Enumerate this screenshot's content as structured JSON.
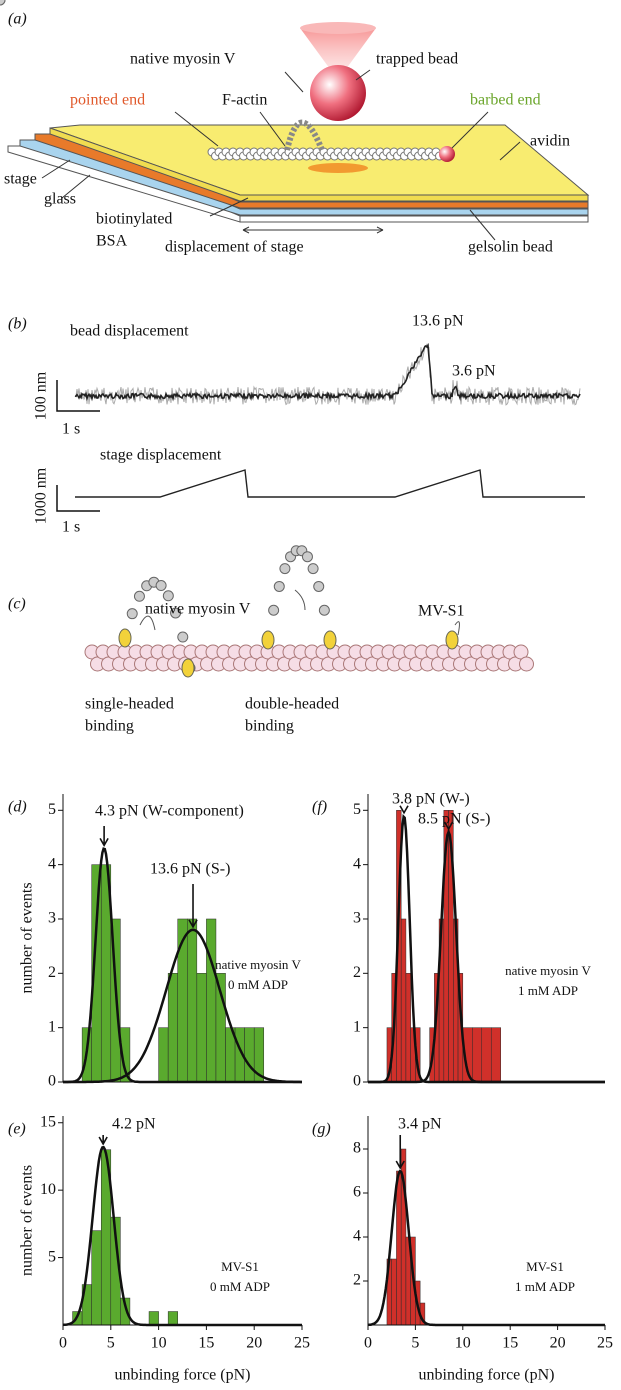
{
  "panel_a": {
    "label": "(a)",
    "native_myosin": "native myosin V",
    "trapped_bead": "trapped bead",
    "pointed_end": "pointed end",
    "f_actin": "F-actin",
    "barbed_end": "barbed end",
    "avidin": "avidin",
    "stage": "stage",
    "glass": "glass",
    "bsa_1": "biotinylated",
    "bsa_2": "BSA",
    "displacement": "displacement of stage",
    "gelsolin": "gelsolin bead"
  },
  "panel_b": {
    "label": "(b)",
    "bead_title": "bead displacement",
    "force_1": "13.6 pN",
    "force_2": "3.6 pN",
    "bead_scale_y": "100 nm",
    "bead_scale_x": "1 s",
    "stage_title": "stage displacement",
    "stage_scale_y": "1000 nm",
    "stage_scale_x": "1 s"
  },
  "panel_c": {
    "label": "(c)",
    "native_myosin": "native myosin V",
    "mv_s1": "MV-S1",
    "single_1": "single-headed",
    "single_2": "binding",
    "double_1": "double-headed",
    "double_2": "binding"
  },
  "chart_data": [
    {
      "type": "histogram",
      "panel_label": "(d)",
      "ylabel": "number of events",
      "color": "#5aaa2e",
      "bins": [
        2,
        3,
        4,
        5,
        6,
        7,
        8,
        9,
        10,
        11,
        12,
        13,
        14,
        15,
        16,
        17,
        18,
        19,
        20,
        21
      ],
      "values": [
        1,
        4,
        4,
        3,
        1,
        0,
        0,
        0,
        1,
        2,
        3,
        3,
        2,
        3,
        2,
        1,
        1,
        1,
        1
      ],
      "xlim": [
        0,
        25
      ],
      "ylim": [
        0,
        5.3
      ],
      "yticks": [
        0,
        1,
        2,
        3,
        4,
        5
      ],
      "fits": [
        {
          "mean": 4.3,
          "sd": 0.9,
          "peak": 4.3
        },
        {
          "mean": 13.6,
          "sd": 2.8,
          "peak": 2.8
        }
      ],
      "annotations": [
        "4.3 pN (W-component)",
        "13.6 pN (S-)",
        "native myosin V",
        "0 mM ADP"
      ]
    },
    {
      "type": "histogram",
      "panel_label": "(f)",
      "color": "#d0302a",
      "bins": [
        2,
        2.5,
        3,
        3.5,
        4,
        4.5,
        5,
        5.5,
        6,
        6.5,
        7,
        7.5,
        8,
        8.5,
        9,
        9.5,
        10,
        11,
        12,
        13,
        14
      ],
      "values": [
        1,
        2,
        5,
        3,
        2,
        1,
        1,
        0,
        0,
        1,
        2,
        3,
        5,
        5,
        3,
        2,
        1,
        1,
        1,
        1
      ],
      "xlim": [
        0,
        25
      ],
      "ylim": [
        0,
        5.3
      ],
      "yticks": [
        0,
        1,
        2,
        3,
        4,
        5
      ],
      "fits": [
        {
          "mean": 3.8,
          "sd": 0.6,
          "peak": 4.9
        },
        {
          "mean": 8.5,
          "sd": 0.8,
          "peak": 4.6
        }
      ],
      "annotations": [
        "3.8 pN (W-)",
        "8.5 pN (S-)",
        "native myosin V",
        "1 mM ADP"
      ]
    },
    {
      "type": "histogram",
      "panel_label": "(e)",
      "ylabel": "number of events",
      "xlabel": "unbinding force (pN)",
      "color": "#5aaa2e",
      "bins": [
        1,
        2,
        3,
        4,
        5,
        6,
        7,
        8,
        9,
        10,
        11,
        12
      ],
      "values": [
        1,
        3,
        7,
        13,
        8,
        2,
        0,
        0,
        1,
        0,
        1
      ],
      "xlim": [
        0,
        25
      ],
      "ylim": [
        0,
        15.5
      ],
      "xticks": [
        0,
        5,
        10,
        15,
        20,
        25
      ],
      "yticks": [
        5,
        10,
        15
      ],
      "fits": [
        {
          "mean": 4.2,
          "sd": 1.1,
          "peak": 13.2
        }
      ],
      "annotations": [
        "4.2 pN",
        "MV-S1",
        "0 mM ADP"
      ]
    },
    {
      "type": "histogram",
      "panel_label": "(g)",
      "xlabel": "unbinding force (pN)",
      "color": "#d0302a",
      "bins": [
        2,
        2.5,
        3,
        3.5,
        4,
        4.5,
        5,
        5.5,
        6
      ],
      "values": [
        3,
        3,
        7,
        8,
        4,
        4,
        2,
        1
      ],
      "xlim": [
        0,
        25
      ],
      "ylim": [
        0,
        9.5
      ],
      "xticks": [
        0,
        5,
        10,
        15,
        20,
        25
      ],
      "yticks": [
        2,
        4,
        6,
        8
      ],
      "fits": [
        {
          "mean": 3.4,
          "sd": 0.9,
          "peak": 7.0
        }
      ],
      "annotations": [
        "3.4 pN",
        "MV-S1",
        "1 mM ADP"
      ]
    }
  ]
}
